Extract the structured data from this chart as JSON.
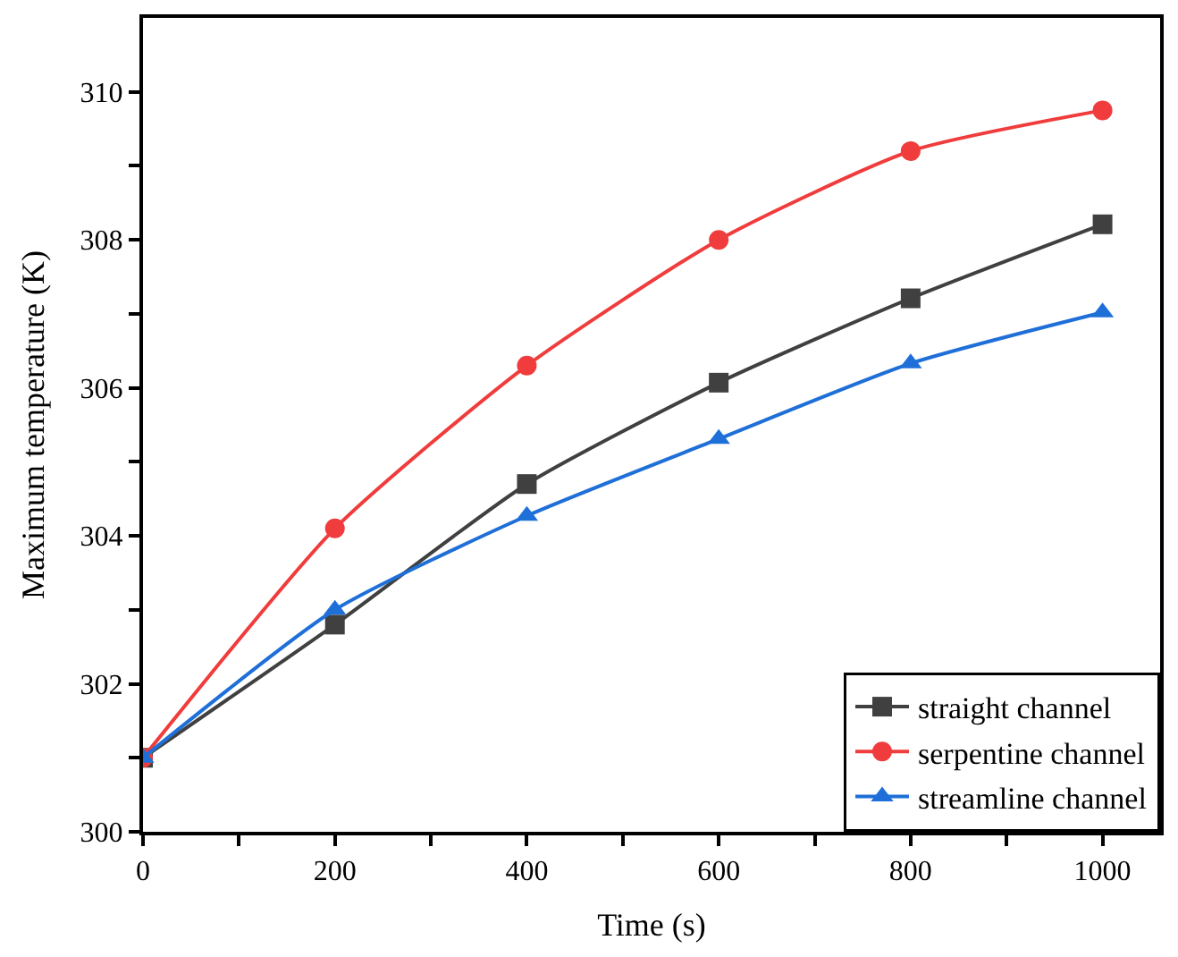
{
  "chart_data": {
    "type": "line",
    "xlabel": "Time (s)",
    "ylabel": "Maximum temperature (K)",
    "x": [
      0,
      200,
      400,
      600,
      800,
      1000
    ],
    "series": [
      {
        "name": "straight channel",
        "color": "#404040",
        "marker": "square",
        "values": [
          301.0,
          302.8,
          304.7,
          306.07,
          307.21,
          308.21
        ]
      },
      {
        "name": "serpentine channel",
        "color": "#f03c3c",
        "marker": "circle",
        "values": [
          301.0,
          304.1,
          306.3,
          308.0,
          309.2,
          309.75
        ]
      },
      {
        "name": "streamline channel",
        "color": "#1f6fd8",
        "marker": "triangle",
        "values": [
          301.0,
          303.0,
          304.27,
          305.31,
          306.33,
          307.02
        ]
      }
    ],
    "xlim": [
      0,
      1060
    ],
    "xticks": [
      0,
      {
        "value": 100,
        "label": null
      },
      200,
      {
        "value": 300,
        "label": null
      },
      400,
      {
        "value": 500,
        "label": null
      },
      600,
      {
        "value": 700,
        "label": null
      },
      800,
      {
        "value": 900,
        "label": null
      },
      1000
    ],
    "ylim": [
      300,
      311
    ],
    "yticks": [
      300,
      {
        "value": 301,
        "label": null
      },
      302,
      {
        "value": 303,
        "label": null
      },
      304,
      {
        "value": 305,
        "label": null
      },
      306,
      {
        "value": 307,
        "label": null
      },
      308,
      {
        "value": 309,
        "label": null
      },
      310
    ],
    "legend": "bottom right",
    "line_style": "solid"
  }
}
